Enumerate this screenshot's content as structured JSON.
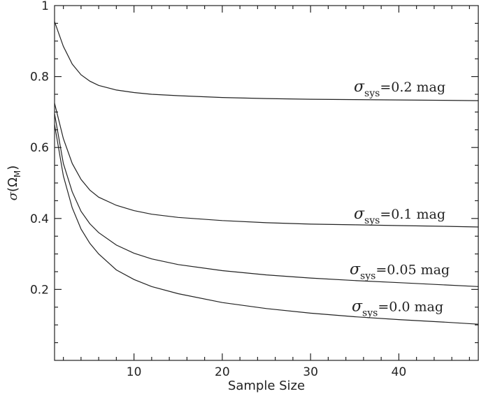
{
  "chart_data": {
    "type": "line",
    "title": "",
    "xlabel": "Sample Size",
    "ylabel": {
      "symbol": "σ",
      "open": "(Ω",
      "sub": "M",
      "close": ")"
    },
    "xlim": [
      1,
      49
    ],
    "ylim": [
      0,
      1
    ],
    "xticks": [
      10,
      20,
      30,
      40
    ],
    "yticks": [
      0.2,
      0.4,
      0.6,
      0.8,
      1
    ],
    "ytick_labels": [
      "0.2",
      "0.4",
      "0.6",
      "0.8",
      "1"
    ],
    "xtick_labels": [
      "10",
      "20",
      "30",
      "40"
    ],
    "x": [
      1,
      2,
      3,
      4,
      5,
      6,
      8,
      10,
      12,
      15,
      20,
      25,
      30,
      35,
      40,
      45,
      49
    ],
    "series": [
      {
        "label": {
          "symbol": "σ",
          "sub": "sys",
          "text": "=0.2 mag"
        },
        "values": [
          0.955,
          0.885,
          0.835,
          0.805,
          0.787,
          0.775,
          0.762,
          0.755,
          0.75,
          0.746,
          0.741,
          0.738,
          0.736,
          0.735,
          0.734,
          0.733,
          0.732
        ]
      },
      {
        "label": {
          "symbol": "σ",
          "sub": "sys",
          "text": "=0.1 mag"
        },
        "values": [
          0.725,
          0.625,
          0.555,
          0.51,
          0.48,
          0.46,
          0.437,
          0.422,
          0.412,
          0.403,
          0.394,
          0.388,
          0.384,
          0.382,
          0.38,
          0.378,
          0.376
        ]
      },
      {
        "label": {
          "symbol": "σ",
          "sub": "sys",
          "text": "=0.05 mag"
        },
        "values": [
          0.695,
          0.555,
          0.475,
          0.42,
          0.385,
          0.36,
          0.325,
          0.302,
          0.286,
          0.27,
          0.253,
          0.241,
          0.232,
          0.225,
          0.219,
          0.213,
          0.208
        ]
      },
      {
        "label": {
          "symbol": "σ",
          "sub": "sys",
          "text": "=0.0 mag"
        },
        "values": [
          0.665,
          0.52,
          0.43,
          0.37,
          0.33,
          0.3,
          0.255,
          0.228,
          0.208,
          0.188,
          0.163,
          0.146,
          0.133,
          0.123,
          0.115,
          0.108,
          0.102
        ]
      }
    ]
  }
}
